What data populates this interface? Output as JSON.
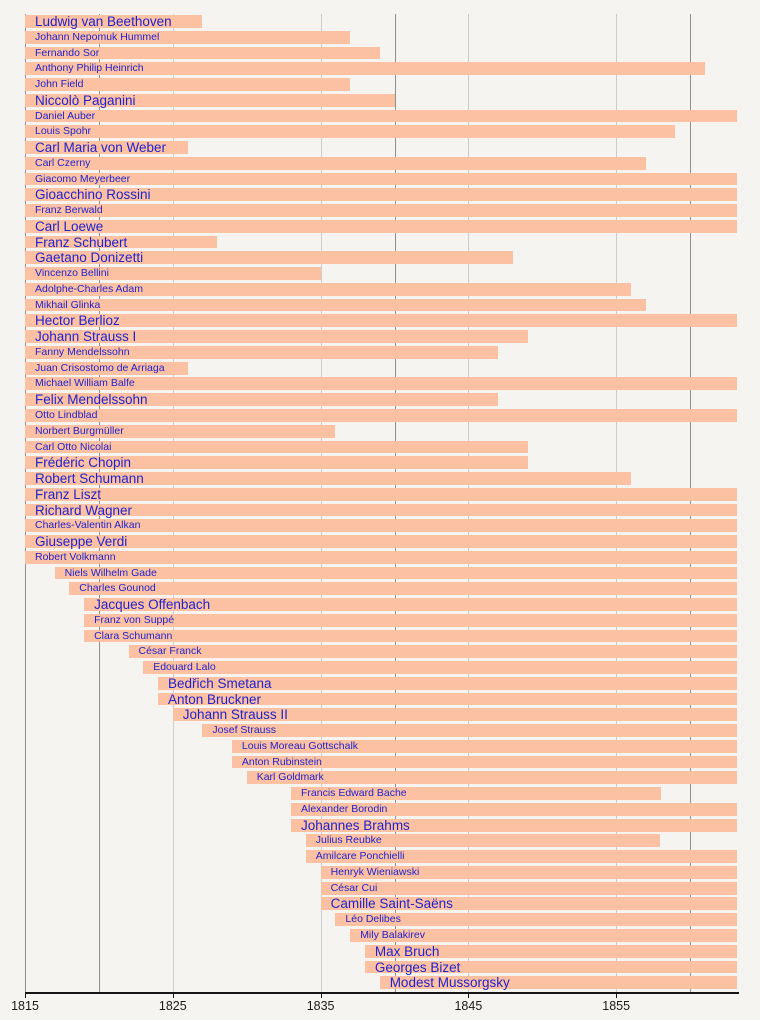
{
  "chart_data": {
    "type": "bar",
    "subtype": "timeline-lifespans",
    "xlim": [
      1815,
      1863.2
    ],
    "x_tick_years": [
      1815,
      1825,
      1835,
      1845,
      1855
    ],
    "x_tick_labels": [
      "1815",
      "1825",
      "1835",
      "1845",
      "1855"
    ],
    "gridlines": {
      "dark_years": [
        1815,
        1820,
        1840,
        1860
      ],
      "light_years": [
        1825,
        1835,
        1845,
        1855
      ]
    },
    "composers": [
      {
        "name": "Ludwig van Beethoven",
        "born": 1770,
        "died": 1827,
        "emphasis": true
      },
      {
        "name": "Johann Nepomuk Hummel",
        "born": 1778,
        "died": 1837,
        "emphasis": false
      },
      {
        "name": "Fernando Sor",
        "born": 1778,
        "died": 1839,
        "emphasis": false
      },
      {
        "name": "Anthony Philip Heinrich",
        "born": 1781,
        "died": 1861,
        "emphasis": false
      },
      {
        "name": "John Field",
        "born": 1782,
        "died": 1837,
        "emphasis": false
      },
      {
        "name": "Niccolò Paganini",
        "born": 1782,
        "died": 1840,
        "emphasis": true
      },
      {
        "name": "Daniel Auber",
        "born": 1782,
        "died": 1871,
        "emphasis": false
      },
      {
        "name": "Louis Spohr",
        "born": 1784,
        "died": 1859,
        "emphasis": false
      },
      {
        "name": "Carl Maria von Weber",
        "born": 1786,
        "died": 1826,
        "emphasis": true
      },
      {
        "name": "Carl Czerny",
        "born": 1791,
        "died": 1857,
        "emphasis": false
      },
      {
        "name": "Giacomo Meyerbeer",
        "born": 1791,
        "died": 1864,
        "emphasis": false
      },
      {
        "name": "Gioacchino Rossini",
        "born": 1792,
        "died": 1868,
        "emphasis": true
      },
      {
        "name": "Franz Berwald",
        "born": 1796,
        "died": 1868,
        "emphasis": false
      },
      {
        "name": "Carl Loewe",
        "born": 1796,
        "died": 1869,
        "emphasis": true
      },
      {
        "name": "Franz Schubert",
        "born": 1797,
        "died": 1828,
        "emphasis": true
      },
      {
        "name": "Gaetano Donizetti",
        "born": 1797,
        "died": 1848,
        "emphasis": true
      },
      {
        "name": "Vincenzo Bellini",
        "born": 1801,
        "died": 1835,
        "emphasis": false
      },
      {
        "name": "Adolphe-Charles Adam",
        "born": 1803,
        "died": 1856,
        "emphasis": false
      },
      {
        "name": "Mikhail Glinka",
        "born": 1804,
        "died": 1857,
        "emphasis": false
      },
      {
        "name": "Hector Berlioz",
        "born": 1803,
        "died": 1869,
        "emphasis": true
      },
      {
        "name": "Johann Strauss I",
        "born": 1804,
        "died": 1849,
        "emphasis": true
      },
      {
        "name": "Fanny Mendelssohn",
        "born": 1805,
        "died": 1847,
        "emphasis": false
      },
      {
        "name": "Juan Crisostomo de Arriaga",
        "born": 1806,
        "died": 1826,
        "emphasis": false
      },
      {
        "name": "Michael William Balfe",
        "born": 1808,
        "died": 1870,
        "emphasis": false
      },
      {
        "name": "Felix Mendelssohn",
        "born": 1809,
        "died": 1847,
        "emphasis": true
      },
      {
        "name": "Otto Lindblad",
        "born": 1809,
        "died": 1864,
        "emphasis": false
      },
      {
        "name": "Norbert Burgmüller",
        "born": 1810,
        "died": 1836,
        "emphasis": false
      },
      {
        "name": "Carl Otto Nicolai",
        "born": 1810,
        "died": 1849,
        "emphasis": false
      },
      {
        "name": "Frédéric Chopin",
        "born": 1810,
        "died": 1849,
        "emphasis": true
      },
      {
        "name": "Robert Schumann",
        "born": 1810,
        "died": 1856,
        "emphasis": true
      },
      {
        "name": "Franz Liszt",
        "born": 1811,
        "died": 1886,
        "emphasis": true
      },
      {
        "name": "Richard Wagner",
        "born": 1813,
        "died": 1883,
        "emphasis": true
      },
      {
        "name": "Charles-Valentin Alkan",
        "born": 1813,
        "died": 1888,
        "emphasis": false
      },
      {
        "name": "Giuseppe Verdi",
        "born": 1813,
        "died": 1901,
        "emphasis": true
      },
      {
        "name": "Robert Volkmann",
        "born": 1815,
        "died": 1883,
        "emphasis": false
      },
      {
        "name": "Niels Wilhelm Gade",
        "born": 1817,
        "died": 1890,
        "emphasis": false
      },
      {
        "name": "Charles Gounod",
        "born": 1818,
        "died": 1893,
        "emphasis": false
      },
      {
        "name": "Jacques Offenbach",
        "born": 1819,
        "died": 1880,
        "emphasis": true
      },
      {
        "name": "Franz von Suppé",
        "born": 1819,
        "died": 1895,
        "emphasis": false
      },
      {
        "name": "Clara Schumann",
        "born": 1819,
        "died": 1896,
        "emphasis": false
      },
      {
        "name": "César Franck",
        "born": 1822,
        "died": 1890,
        "emphasis": false
      },
      {
        "name": "Edouard Lalo",
        "born": 1823,
        "died": 1892,
        "emphasis": false
      },
      {
        "name": "Bedřich Smetana",
        "born": 1824,
        "died": 1884,
        "emphasis": true
      },
      {
        "name": "Anton Bruckner",
        "born": 1824,
        "died": 1896,
        "emphasis": true
      },
      {
        "name": "Johann Strauss II",
        "born": 1825,
        "died": 1899,
        "emphasis": true
      },
      {
        "name": "Josef Strauss",
        "born": 1827,
        "died": 1870,
        "emphasis": false
      },
      {
        "name": "Louis Moreau Gottschalk",
        "born": 1829,
        "died": 1869,
        "emphasis": false
      },
      {
        "name": "Anton Rubinstein",
        "born": 1829,
        "died": 1894,
        "emphasis": false
      },
      {
        "name": "Karl Goldmark",
        "born": 1830,
        "died": 1915,
        "emphasis": false
      },
      {
        "name": "Francis Edward Bache",
        "born": 1833,
        "died": 1858,
        "emphasis": false
      },
      {
        "name": "Alexander Borodin",
        "born": 1833,
        "died": 1887,
        "emphasis": false
      },
      {
        "name": "Johannes Brahms",
        "born": 1833,
        "died": 1897,
        "emphasis": true
      },
      {
        "name": "Julius Reubke",
        "born": 1834,
        "died": 1858,
        "emphasis": false
      },
      {
        "name": "Amilcare Ponchielli",
        "born": 1834,
        "died": 1886,
        "emphasis": false
      },
      {
        "name": "Henryk Wieniawski",
        "born": 1835,
        "died": 1880,
        "emphasis": false
      },
      {
        "name": "César Cui",
        "born": 1835,
        "died": 1918,
        "emphasis": false
      },
      {
        "name": "Camille Saint-Saëns",
        "born": 1835,
        "died": 1921,
        "emphasis": true
      },
      {
        "name": "Léo Delibes",
        "born": 1836,
        "died": 1891,
        "emphasis": false
      },
      {
        "name": "Mily Balakirev",
        "born": 1837,
        "died": 1910,
        "emphasis": false
      },
      {
        "name": "Max Bruch",
        "born": 1838,
        "died": 1920,
        "emphasis": true
      },
      {
        "name": "Georges Bizet",
        "born": 1838,
        "died": 1875,
        "emphasis": true
      },
      {
        "name": "Modest Mussorgsky",
        "born": 1839,
        "died": 1881,
        "emphasis": true
      }
    ]
  },
  "colors": {
    "background": "#f5f4f1",
    "bar": "#fbc1a2",
    "label_text": "#2222cc",
    "gridline_dark": "#8f8f8f",
    "gridline_light": "#cccccc",
    "axis": "#151515",
    "axis_label_text": "#1a1a1a"
  }
}
